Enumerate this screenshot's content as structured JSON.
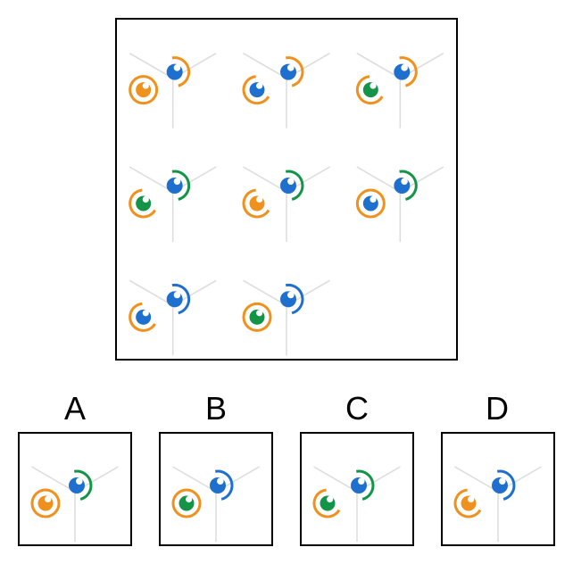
{
  "colors": {
    "blue": "#1f6fce",
    "orange": "#f0911e",
    "green": "#149447",
    "spoke": "#dcdcdc",
    "border": "#000000"
  },
  "puzzle": {
    "cells": [
      {
        "arc": "orange",
        "dot": "blue",
        "outer_color": "orange",
        "outer_full": true,
        "inner": "orange"
      },
      {
        "arc": "orange",
        "dot": "blue",
        "outer_color": "orange",
        "outer_full": false,
        "inner": "blue"
      },
      {
        "arc": "orange",
        "dot": "blue",
        "outer_color": "orange",
        "outer_full": false,
        "inner": "green"
      },
      {
        "arc": "green",
        "dot": "blue",
        "outer_color": "orange",
        "outer_full": false,
        "inner": "green"
      },
      {
        "arc": "green",
        "dot": "blue",
        "outer_color": "orange",
        "outer_full": false,
        "inner": "orange"
      },
      {
        "arc": "green",
        "dot": "blue",
        "outer_color": "orange",
        "outer_full": true,
        "inner": "blue"
      },
      {
        "arc": "blue",
        "dot": "blue",
        "outer_color": "orange",
        "outer_full": false,
        "inner": "blue"
      },
      {
        "arc": "blue",
        "dot": "blue",
        "outer_color": "orange",
        "outer_full": true,
        "inner": "green"
      }
    ]
  },
  "options": [
    {
      "label": "A",
      "arc": "green",
      "dot": "blue",
      "outer_color": "orange",
      "outer_full": true,
      "inner": "orange"
    },
    {
      "label": "B",
      "arc": "blue",
      "dot": "blue",
      "outer_color": "orange",
      "outer_full": true,
      "inner": "green"
    },
    {
      "label": "C",
      "arc": "green",
      "dot": "blue",
      "outer_color": "orange",
      "outer_full": false,
      "inner": "green"
    },
    {
      "label": "D",
      "arc": "blue",
      "dot": "blue",
      "outer_color": "orange",
      "outer_full": false,
      "inner": "orange"
    }
  ]
}
